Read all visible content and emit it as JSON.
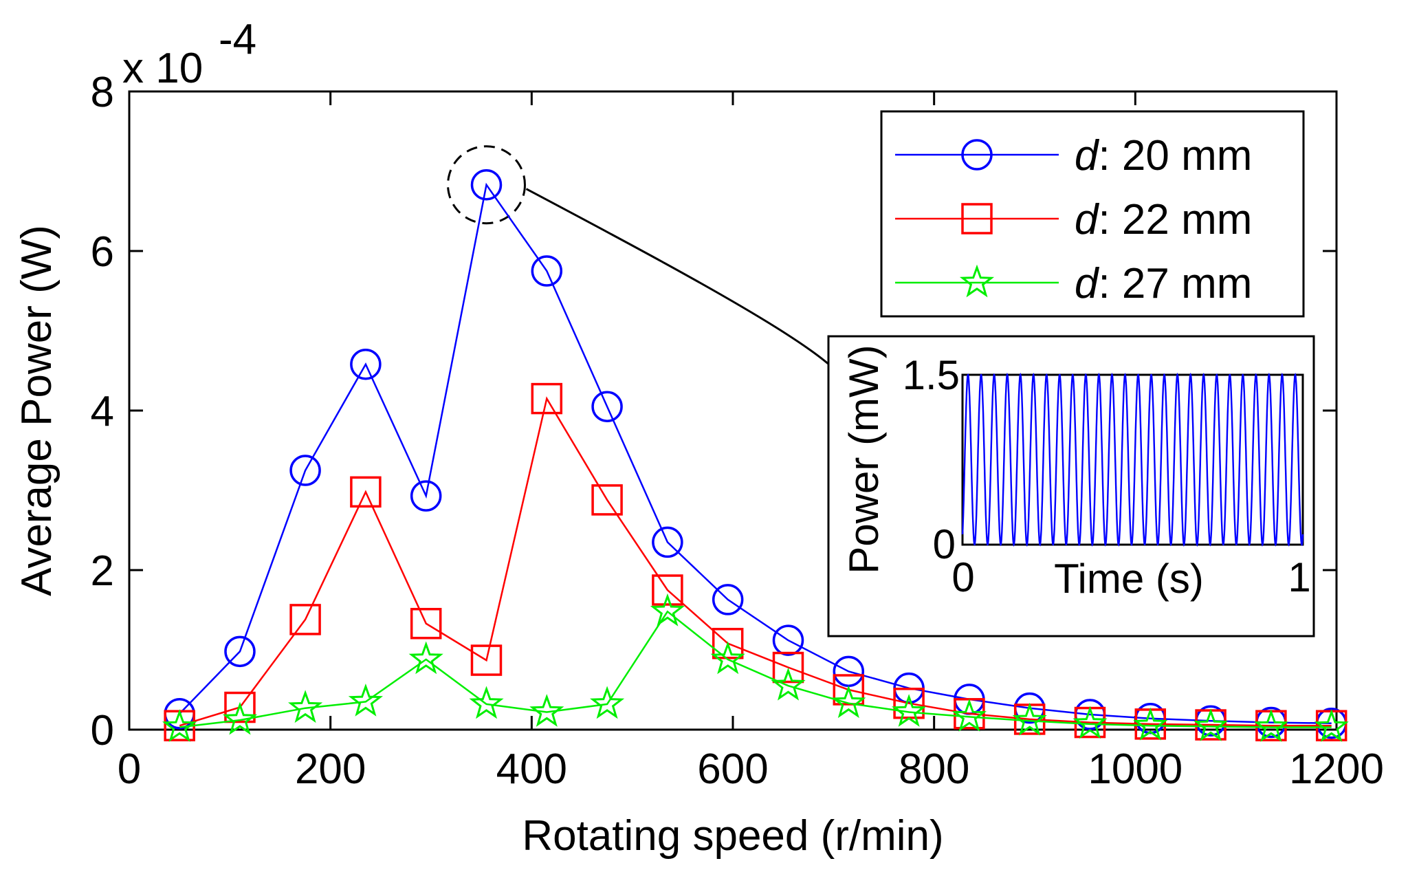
{
  "chart_data": {
    "type": "line",
    "title": "",
    "xlabel": "Rotating speed (r/min)",
    "ylabel": "Average Power (W)",
    "y_multiplier": "x 10",
    "y_multiplier_exponent": "-4",
    "xlim": [
      0,
      1200
    ],
    "ylim": [
      0,
      8
    ],
    "xticks": [
      0,
      200,
      400,
      600,
      800,
      1000,
      1200
    ],
    "yticks": [
      0,
      2,
      4,
      6,
      8
    ],
    "grid": false,
    "legend_position": "top-right",
    "x": [
      50,
      110,
      175,
      235,
      295,
      355,
      415,
      475,
      535,
      595,
      655,
      715,
      775,
      835,
      895,
      955,
      1015,
      1075,
      1135,
      1195
    ],
    "series": [
      {
        "name": "d : 20 mm",
        "name_italic": "d",
        "name_rest": ": 20 mm",
        "color": "#0000ff",
        "marker": "circle",
        "values": [
          0.2,
          0.98,
          3.25,
          4.58,
          2.93,
          6.83,
          5.75,
          4.05,
          2.35,
          1.63,
          1.12,
          0.73,
          0.52,
          0.38,
          0.27,
          0.19,
          0.14,
          0.11,
          0.09,
          0.08
        ]
      },
      {
        "name": "d : 22 mm",
        "name_italic": "d",
        "name_rest": ": 22 mm",
        "color": "#ff0000",
        "marker": "square",
        "values": [
          0.05,
          0.28,
          1.38,
          2.98,
          1.33,
          0.87,
          4.15,
          2.88,
          1.75,
          1.08,
          0.78,
          0.5,
          0.33,
          0.2,
          0.13,
          0.09,
          0.07,
          0.06,
          0.05,
          0.05
        ]
      },
      {
        "name": "d : 27 mm",
        "name_italic": "d",
        "name_rest": ": 27 mm",
        "color": "#00ee00",
        "marker": "star",
        "values": [
          0.03,
          0.12,
          0.27,
          0.35,
          0.88,
          0.32,
          0.22,
          0.32,
          1.48,
          0.88,
          0.55,
          0.33,
          0.22,
          0.16,
          0.11,
          0.07,
          0.05,
          0.04,
          0.03,
          0.03
        ]
      }
    ],
    "highlight_point": {
      "series": "d : 20 mm",
      "x": 355,
      "y": 6.83
    },
    "inset": {
      "type": "line",
      "xlabel": "Time (s)",
      "ylabel": "Power (mW)",
      "xlim": [
        0,
        1
      ],
      "ylim": [
        0,
        1.5
      ],
      "xtick_labels": [
        "0",
        "1"
      ],
      "ytick_labels": [
        "0",
        "1.5"
      ],
      "color": "#0000ff",
      "signal": "periodic oscillation between 0 and 1.5",
      "cycles": 26
    }
  }
}
